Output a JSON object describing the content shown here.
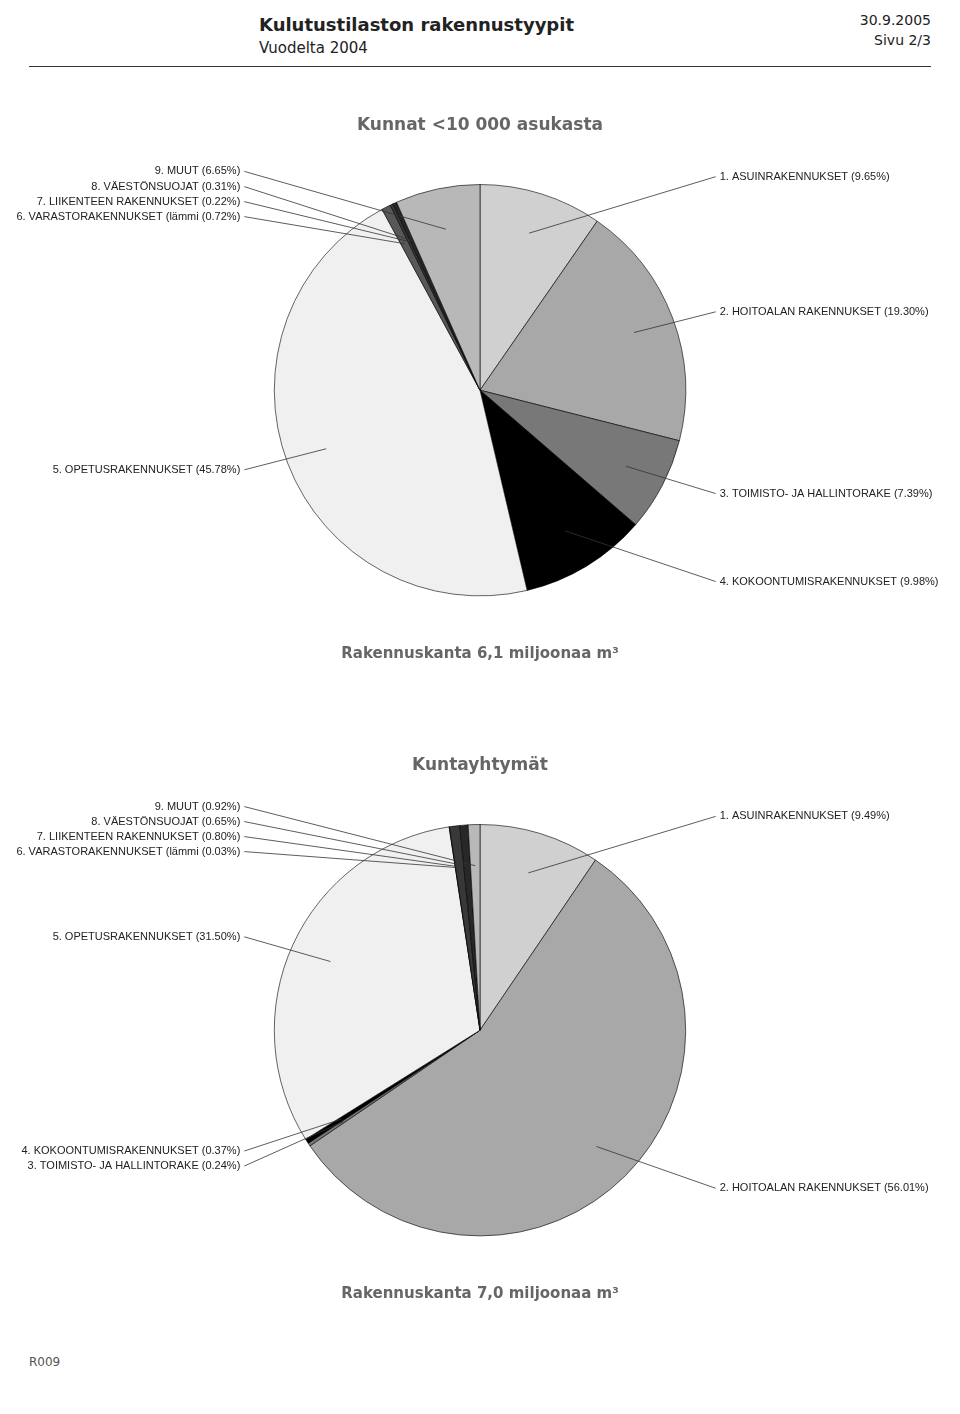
{
  "chart_data": [
    {
      "type": "pie",
      "title": "Kunnat <10 000 asukasta",
      "subtitle": "Rakennuskanta 6,1 miljoonaa m³",
      "categories": [
        "1. ASUINRAKENNUKSET (9.65%)",
        "2. HOITOALAN RAKENNUKSET (19.30%)",
        "3. TOIMISTO- JA HALLINTORAKE (7.39%)",
        "4. KOKOONTUMISRAKENNUKSET (9.98%)",
        "5. OPETUSRAKENNUKSET (45.78%)",
        "6. VARASTORAKENNUKSET (lämmi (0.72%)",
        "7. LIIKENTEEN RAKENNUKSET (0.22%)",
        "8. VÄESTÖNSUOJAT (0.31%)",
        "9. MUUT (6.65%)"
      ],
      "values": [
        9.65,
        19.3,
        7.39,
        9.98,
        45.78,
        0.72,
        0.22,
        0.31,
        6.65
      ],
      "colors": [
        "#d0d0d0",
        "#a8a8a8",
        "#787878",
        "#000000",
        "#f0f0f0",
        "#585858",
        "#383838",
        "#282828",
        "#b8b8b8"
      ],
      "annotations": [
        "Kulutustilaston rakennustyypit",
        "Vuodelta 2004",
        "30.9.2005",
        "Sivu 2/3"
      ]
    },
    {
      "type": "pie",
      "title": "Kuntayhtymät",
      "subtitle": "Rakennuskanta 7,0 miljoonaa m³",
      "categories": [
        "1. ASUINRAKENNUKSET (9.49%)",
        "2. HOITOALAN RAKENNUKSET (56.01%)",
        "3. TOIMISTO- JA HALLINTORAKE (0.24%)",
        "4. KOKOONTUMISRAKENNUKSET (0.37%)",
        "5. OPETUSRAKENNUKSET (31.50%)",
        "6. VARASTORAKENNUKSET (lämmi (0.03%)",
        "7. LIIKENTEEN RAKENNUKSET (0.80%)",
        "8. VÄESTÖNSUOJAT (0.65%)",
        "9. MUUT (0.92%)"
      ],
      "values": [
        9.49,
        56.01,
        0.24,
        0.37,
        31.5,
        0.03,
        0.8,
        0.65,
        0.92
      ],
      "colors": [
        "#d0d0d0",
        "#a8a8a8",
        "#787878",
        "#000000",
        "#f0f0f0",
        "#585858",
        "#383838",
        "#282828",
        "#b8b8b8"
      ],
      "annotations": [
        "R009"
      ]
    }
  ]
}
